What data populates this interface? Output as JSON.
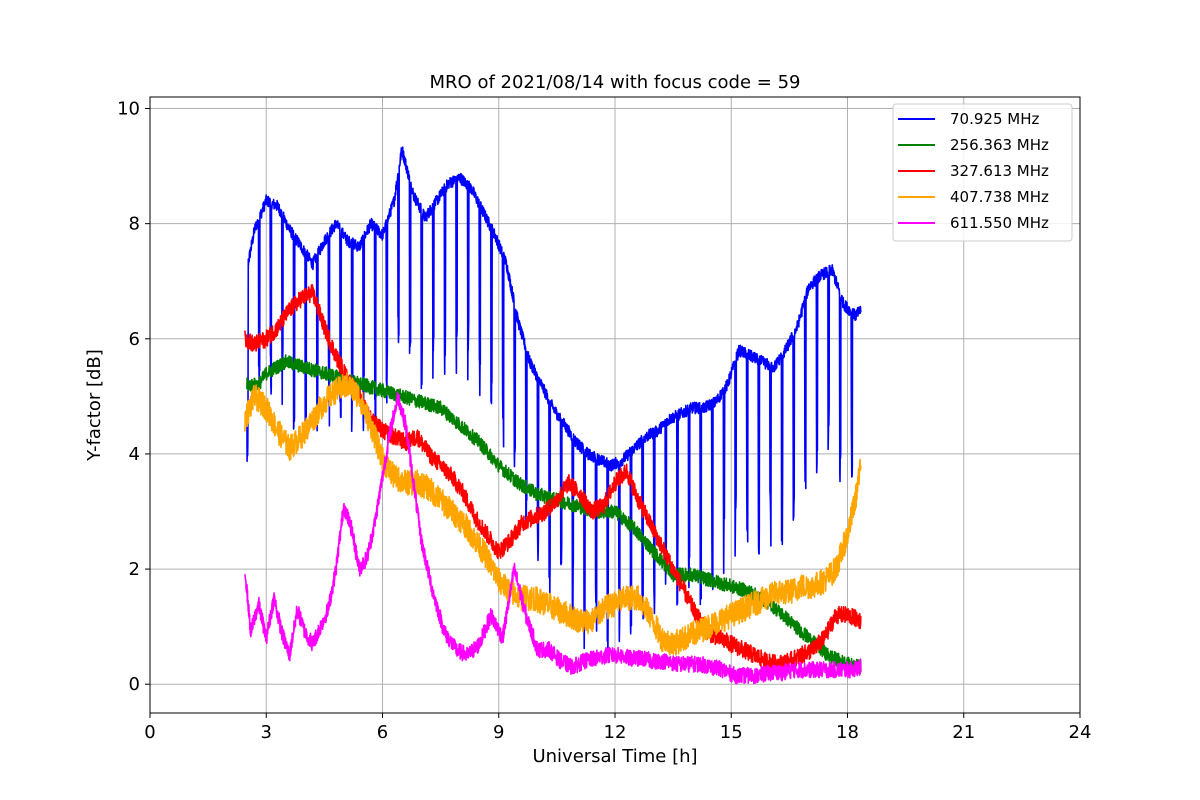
{
  "chart_data": {
    "type": "line",
    "title": "MRO of 2021/08/14 with focus code = 59",
    "xlabel": "Universal Time [h]",
    "ylabel": "Y-factor [dB]",
    "xlim": [
      0,
      24
    ],
    "ylim": [
      -0.5,
      10.2
    ],
    "xticks": [
      "0",
      "3",
      "6",
      "9",
      "12",
      "15",
      "18",
      "21",
      "24"
    ],
    "yticks": [
      "0",
      "2",
      "4",
      "6",
      "8",
      "10"
    ],
    "grid": true,
    "legend_position": "top-right",
    "series": [
      {
        "name": " 70.925 MHz",
        "color": "#0000ff",
        "x": [
          2.5,
          2.7,
          3.0,
          3.3,
          3.6,
          3.9,
          4.2,
          4.5,
          4.8,
          5.1,
          5.4,
          5.7,
          6.0,
          6.3,
          6.5,
          6.8,
          7.1,
          7.4,
          7.7,
          8.0,
          8.3,
          8.6,
          8.9,
          9.2,
          9.5,
          9.8,
          10.1,
          10.4,
          10.7,
          11.0,
          11.3,
          11.6,
          11.9,
          12.2,
          12.5,
          12.8,
          13.1,
          13.4,
          13.7,
          14.0,
          14.3,
          14.6,
          14.9,
          15.2,
          15.5,
          15.8,
          16.1,
          16.4,
          16.7,
          17.0,
          17.3,
          17.6,
          17.9,
          18.2,
          18.35
        ],
        "y": [
          7.2,
          7.9,
          8.4,
          8.3,
          7.9,
          7.6,
          7.3,
          7.7,
          8.0,
          7.7,
          7.6,
          8.0,
          7.8,
          8.4,
          9.3,
          8.5,
          8.1,
          8.4,
          8.7,
          8.8,
          8.6,
          8.2,
          7.8,
          7.3,
          6.3,
          5.6,
          5.2,
          4.8,
          4.5,
          4.2,
          4.0,
          3.9,
          3.8,
          3.9,
          4.1,
          4.3,
          4.4,
          4.6,
          4.7,
          4.8,
          4.8,
          4.9,
          5.2,
          5.8,
          5.7,
          5.6,
          5.5,
          5.8,
          6.2,
          6.9,
          7.1,
          7.2,
          6.6,
          6.4,
          6.5
        ],
        "dip_interval": 0.3,
        "dip_depth": 2.6
      },
      {
        "name": "256.363 MHz",
        "color": "#008000",
        "x": [
          2.5,
          2.8,
          3.0,
          3.5,
          4.0,
          4.5,
          5.0,
          5.5,
          6.0,
          6.5,
          7.0,
          7.5,
          8.0,
          8.5,
          9.0,
          9.5,
          10.0,
          10.5,
          11.0,
          11.5,
          12.0,
          12.5,
          13.0,
          13.5,
          14.0,
          14.5,
          15.0,
          15.5,
          16.0,
          16.5,
          17.0,
          17.5,
          18.0,
          18.35
        ],
        "y": [
          5.2,
          5.2,
          5.4,
          5.6,
          5.5,
          5.4,
          5.3,
          5.2,
          5.1,
          5.0,
          4.9,
          4.8,
          4.5,
          4.2,
          3.8,
          3.5,
          3.3,
          3.2,
          3.1,
          3.0,
          3.0,
          2.7,
          2.3,
          1.9,
          1.9,
          1.8,
          1.7,
          1.6,
          1.4,
          1.1,
          0.8,
          0.5,
          0.35,
          0.3
        ],
        "noise": 0.12
      },
      {
        "name": "327.613 MHz",
        "color": "#ff0000",
        "x": [
          2.45,
          2.7,
          3.0,
          3.3,
          3.6,
          3.9,
          4.2,
          4.5,
          4.8,
          5.1,
          5.4,
          5.7,
          6.0,
          6.3,
          6.6,
          6.9,
          7.2,
          7.5,
          7.8,
          8.1,
          8.4,
          8.7,
          9.0,
          9.3,
          9.6,
          9.9,
          10.2,
          10.5,
          10.8,
          11.1,
          11.4,
          11.7,
          12.0,
          12.3,
          12.6,
          12.9,
          13.2,
          13.5,
          13.8,
          14.1,
          14.4,
          14.7,
          15.0,
          15.3,
          15.6,
          15.9,
          16.2,
          16.5,
          16.8,
          17.1,
          17.4,
          17.7,
          18.0,
          18.35
        ],
        "y": [
          6.0,
          5.9,
          6.0,
          6.2,
          6.5,
          6.7,
          6.8,
          6.2,
          5.7,
          5.3,
          5.0,
          4.6,
          4.4,
          4.3,
          4.2,
          4.3,
          4.0,
          3.8,
          3.6,
          3.3,
          2.9,
          2.6,
          2.3,
          2.5,
          2.8,
          2.9,
          3.0,
          3.2,
          3.5,
          3.3,
          3.0,
          3.1,
          3.5,
          3.7,
          3.2,
          2.8,
          2.4,
          2.0,
          1.6,
          1.2,
          0.9,
          0.8,
          0.7,
          0.6,
          0.5,
          0.4,
          0.35,
          0.4,
          0.5,
          0.6,
          0.8,
          1.2,
          1.2,
          1.1
        ],
        "noise": 0.15
      },
      {
        "name": "407.738 MHz",
        "color": "#ffa500",
        "x": [
          2.45,
          2.7,
          3.0,
          3.3,
          3.6,
          3.9,
          4.2,
          4.5,
          4.8,
          5.1,
          5.4,
          5.7,
          6.0,
          6.3,
          6.6,
          6.9,
          7.2,
          7.5,
          7.8,
          8.1,
          8.4,
          8.7,
          9.0,
          9.3,
          9.6,
          9.9,
          10.2,
          10.5,
          10.8,
          11.1,
          11.4,
          11.7,
          12.0,
          12.3,
          12.6,
          12.9,
          13.2,
          13.5,
          13.8,
          14.1,
          14.4,
          14.7,
          15.0,
          15.3,
          15.6,
          15.9,
          16.2,
          16.5,
          16.8,
          17.1,
          17.4,
          17.7,
          18.0,
          18.2,
          18.35
        ],
        "y": [
          4.6,
          5.0,
          4.8,
          4.4,
          4.1,
          4.3,
          4.6,
          4.9,
          5.1,
          5.2,
          5.0,
          4.5,
          3.9,
          3.6,
          3.5,
          3.5,
          3.4,
          3.2,
          3.0,
          2.8,
          2.5,
          2.2,
          1.8,
          1.6,
          1.5,
          1.5,
          1.4,
          1.3,
          1.2,
          1.1,
          1.1,
          1.3,
          1.4,
          1.5,
          1.5,
          1.2,
          0.8,
          0.7,
          0.8,
          0.9,
          1.0,
          1.1,
          1.2,
          1.3,
          1.4,
          1.5,
          1.6,
          1.6,
          1.7,
          1.7,
          1.8,
          2.0,
          2.6,
          3.2,
          3.8
        ],
        "noise": 0.22
      },
      {
        "name": "611.550 MHz",
        "color": "#ff00ff",
        "x": [
          2.45,
          2.6,
          2.8,
          3.0,
          3.2,
          3.4,
          3.6,
          3.8,
          4.0,
          4.2,
          4.4,
          4.6,
          4.8,
          5.0,
          5.2,
          5.4,
          5.6,
          5.8,
          6.0,
          6.2,
          6.4,
          6.6,
          6.8,
          7.0,
          7.3,
          7.6,
          7.9,
          8.2,
          8.5,
          8.8,
          9.1,
          9.4,
          9.7,
          10.0,
          10.3,
          10.6,
          10.9,
          11.2,
          11.5,
          11.8,
          12.1,
          12.4,
          12.7,
          13.0,
          13.3,
          13.6,
          13.9,
          14.2,
          14.5,
          14.8,
          15.1,
          15.4,
          15.7,
          16.0,
          16.3,
          16.6,
          16.9,
          17.2,
          17.5,
          17.8,
          18.1,
          18.35
        ],
        "y": [
          2.0,
          0.9,
          1.4,
          0.8,
          1.5,
          0.9,
          0.5,
          1.3,
          0.9,
          0.7,
          1.0,
          1.3,
          2.0,
          3.1,
          2.7,
          2.0,
          2.2,
          2.8,
          3.6,
          4.4,
          5.0,
          4.5,
          3.5,
          2.5,
          1.6,
          0.9,
          0.6,
          0.5,
          0.7,
          1.2,
          0.8,
          2.0,
          1.2,
          0.6,
          0.6,
          0.4,
          0.3,
          0.4,
          0.45,
          0.5,
          0.5,
          0.45,
          0.45,
          0.4,
          0.4,
          0.35,
          0.35,
          0.35,
          0.3,
          0.25,
          0.15,
          0.15,
          0.15,
          0.2,
          0.2,
          0.25,
          0.25,
          0.25,
          0.25,
          0.25,
          0.25,
          0.3
        ],
        "noise": 0.14
      }
    ]
  }
}
